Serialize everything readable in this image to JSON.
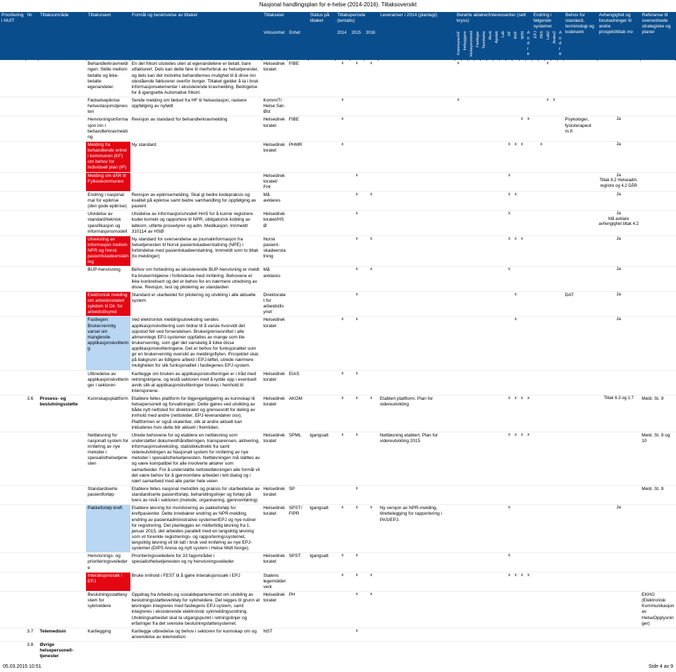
{
  "page_title": "Nasjonal handlingsplan for e-helse (2014-2016). Tiltaksoversikt",
  "footer_left": "05.03.2015 10:51",
  "footer_right": "Side 4 av 9",
  "columns": {
    "pri": "Prioritering i NUIT",
    "nr": "Nr",
    "omr": "Tiltaksområde",
    "navn": "Tiltaksnavn",
    "form": "Formål og beskrivelse av tiltaket",
    "tiltaksseier": "Tiltakseier",
    "virk": "Virksomhet",
    "enhet": "Enhet",
    "stat": "Status på tiltaket",
    "tp_head": "Tiltaksperiode (tentativ)",
    "tp_2014": "2014",
    "tp_2015": "2015",
    "tp_2016": "2016",
    "lev": "Leveranser i 2014 (planlagt)",
    "ba_head": "Berørte aktører/interessenter (sett kryss)",
    "ef_head": "Endring i følgende systemer",
    "ef_andre": "Andre",
    "andre2": "Andre",
    "beh": "Behov for standard, terminologi og kodeverk",
    "avh": "Avhengighet og forutsetninger til andre prosjekt/tiltak mv",
    "ref": "Referanse til overordnede strategiske og planer",
    "ba_cols": [
      "Kommune/HF",
      "Innbyggere",
      "Helsepersonell",
      "Fastleger",
      "Tannhelse",
      "Akutt",
      "Apotek",
      "Lab",
      "HF",
      "RHF",
      "NPR",
      "FHK",
      "Andre",
      "EPJ",
      "PAS",
      "Lab2",
      "Andre2"
    ]
  },
  "rows": [
    {
      "navn": "Behandlerkravmeldingen: Skille mellom betalte og ikke-betalte egenandeler.",
      "form": "En del frikort utstedes uten at egenandelene er betalt, bare utfakturert. Dels kan dette føre til merforbruk av helsetjenester, og dels kan det motvirke behandlernes mulighet til å drive inn utestående fakturerer overfor borger. Tiltaket gjelder å ta i bruk informasjonselementer i eksisterende kravmelding. Betingelse for å igangsette Automatisk frikort.",
      "eier": "Helsedirektoratet",
      "unit": "FIBE",
      "tp": [
        "x",
        "x",
        "x"
      ],
      "ba": [
        "x",
        "",
        "",
        "",
        "",
        "",
        "",
        "",
        "",
        "",
        "",
        "",
        "",
        "x",
        "",
        "",
        ""
      ],
      "ef": [
        "",
        "",
        "x",
        ""
      ],
      "navn_hl": "",
      "beh": "",
      "avh": "",
      "ref": ""
    },
    {
      "navn": "Fødselsepikrise helsestasjonstjenesten",
      "form": "Sende melding om fødsel fra HF til helsestasjon, raskere oppfølging av nyfødt",
      "eier": "KommIT/ Helse Sør-Øst",
      "unit": "",
      "tp": [
        "x",
        "",
        ""
      ],
      "ba": [
        "x",
        "",
        "",
        "",
        "",
        "",
        "",
        "",
        "",
        "",
        "",
        "",
        "x",
        "",
        "",
        "x",
        ""
      ],
      "ef": [
        "",
        "",
        "x",
        "x"
      ],
      "navn_hl": "",
      "beh": "",
      "avh": "",
      "ref": ""
    },
    {
      "navn": "Henvisningsinformasjon inn i behandlerkravmelding",
      "form": "Revisjon av standard for behandlerkravmelding",
      "eier": "Helsedirektoratet",
      "unit": "FIBE",
      "tp": [
        "x",
        "",
        ""
      ],
      "ba": [
        "",
        "",
        "",
        "",
        "",
        "",
        "",
        "",
        "",
        "",
        "x",
        "x",
        "",
        "",
        "",
        "",
        ""
      ],
      "ef": [
        "",
        "",
        "",
        ""
      ],
      "beh": "Psykologer, fysioterapeut m.fl",
      "avh": "x",
      "ref": "Ja",
      "navn_hl": ""
    },
    {
      "navn_hl": "red",
      "navn": "Melding fra behandlende enhet i kommunen (KF) om behov for individuell plan (IP)",
      "form": "Ny standard",
      "eier": "Helsedirektoratet",
      "unit": "PHMR",
      "tp": [
        "x",
        "",
        ""
      ],
      "ba": [
        "",
        "",
        "",
        "",
        "",
        "",
        "",
        "",
        "x",
        "x",
        "x",
        "",
        "",
        "",
        "",
        "",
        ""
      ],
      "ef": [
        "",
        "x",
        "",
        ""
      ],
      "beh": "",
      "avh": "",
      "ref": "Ja"
    },
    {
      "navn_hl": "red",
      "navn": "Melding om dÅR til Fylkeskommunen",
      "form": "",
      "eier": "Helsedirektoratet/ FHI",
      "unit": "",
      "tp": [
        "",
        "x",
        ""
      ],
      "ba": [
        "",
        "",
        "",
        "",
        "",
        "",
        "",
        "",
        "x",
        "",
        "",
        "",
        "",
        "x",
        "",
        "x",
        ""
      ],
      "ef": [
        "",
        "",
        "",
        ""
      ],
      "beh": "",
      "avh": "",
      "ref": "Ja",
      "ref2": "Tiltak 8.2 Helseadm. registre og 4.2 DÅR"
    },
    {
      "navn": "Endring i nasjonal mal for epikrise (den gode epikrise)",
      "form": "Revisjon av epikrisemelding. Skal gi bedre kodepraksis og kvalitet på epikrise samt bedre samhandling for oppfølging av pasient",
      "eier": "Må avklares",
      "unit": "",
      "tp": [
        "",
        "x",
        "x"
      ],
      "ba": [
        "",
        "",
        "",
        "",
        "",
        "",
        "",
        "",
        "x",
        "x",
        "",
        "",
        "",
        "x",
        "",
        "x",
        ""
      ],
      "ef": [
        "",
        "",
        "",
        ""
      ],
      "beh": "",
      "avh": "",
      "ref": "Ja",
      "navn_hl": ""
    },
    {
      "navn": "Utvidelse av standard/teknisk spesifikasjon og informasjonsmodell",
      "form": "Utvidelse av informasjonsmodell Hm5 for å kunne registrere koder korrekt og rapportere til NPR, obligatorisk kobling av labkom, utførte prosedyrer og adm. Medikasjon. Innmeldt 310114 av HSØ",
      "eier": "Helsedirektoratet/HSØ",
      "unit": "",
      "tp": [
        "",
        "x",
        ""
      ],
      "ba": [
        "",
        "",
        "",
        "",
        "",
        "",
        "",
        "",
        "x",
        "",
        "",
        "",
        "",
        "",
        "",
        "x",
        ""
      ],
      "ef": [
        "",
        "",
        "",
        ""
      ],
      "beh": "",
      "avh": "",
      "ref": "Ja",
      "ref2": "Må avklare avhengighet tiltak 4.2",
      "navn_hl": ""
    },
    {
      "navn_hl": "red",
      "navn": "Utveksling av informasjon mellom NPR og Norsk pasientskadeerstatning",
      "form": "Ny standard for oversendelse av journalinformasjon fra helsetjenesten til Norsk pasientskadeerstatning (NPE) i forbindelse med pasientskadeerstatning. Innmeldt som to tiltak (to meldinger)",
      "eier": "Norsk pasient-skadeerstatning",
      "unit": "",
      "tp": [
        "",
        "x",
        "x"
      ],
      "ba": [
        "",
        "",
        "",
        "",
        "",
        "",
        "",
        "",
        "x",
        "x",
        "x",
        "",
        "x",
        "",
        "",
        "x",
        ""
      ],
      "ef": [
        "",
        "",
        "",
        ""
      ],
      "beh": "",
      "avh": "",
      "ref": "Ja"
    },
    {
      "navn": "BUP-henvisning",
      "form": "Behov om forbedring av eksisterende BUP-henvisning er meldt fra brukermiljøene i forbindelse med innføring. Behovene er ikke konkretisert og det er behov for en nærmere utredning av disse. Revisjon, test og pilotering av standarden",
      "eier": "Må avklares",
      "unit": "",
      "tp": [
        "",
        "x",
        "x"
      ],
      "ba": [
        "",
        "",
        "",
        "",
        "",
        "",
        "",
        "",
        "x",
        "",
        "",
        "",
        "",
        "",
        "",
        "x",
        ""
      ],
      "ef": [
        "",
        "",
        "",
        ""
      ],
      "beh": "",
      "avh": "",
      "ref": "Ja",
      "navn_hl": ""
    },
    {
      "navn_hl": "red",
      "navn": "Elektronisk melding om arbeidsrelatert sykdom til Dir. for arbeidstilsynet",
      "form": "Standard er utarbeidet for pilotering og utvikling i alle aktuelle system",
      "eier": "Direktoratet for arbeidstilsynet",
      "unit": "",
      "tp": [
        "",
        "x",
        ""
      ],
      "ba": [
        "",
        "",
        "",
        "",
        "",
        "",
        "",
        "",
        "",
        "x",
        "",
        "",
        "",
        "",
        "",
        "",
        ""
      ],
      "ef": [
        "",
        "",
        "",
        ""
      ],
      "beh": "DAT",
      "avh": "x",
      "ref": "Ja"
    },
    {
      "navn_hl": "blue",
      "navn": "Fastlegen: Brukervennlig varsel om manglende applikasjonskvittering",
      "form": "Ved elektronisk meldingsutveksling sendes applikasjonskvittering som bidrar til å varsle hvorvidt det oppstod feil ved forsendelsen. Brukergrensesnittet i alle allmennlege EPJ-systemer oppfattes av mange som lite brukervennlig, som gjør det vanskelig å tolke disse applikasjonskvitteringene. Det er behov for funksjonalitet som gir en brukervennlig oversikt av meldingsflyten. Prosjektet skal, på bakgrunn av tidligere arbeid i EPJ-løftet, utrede nærmere muligheten for slik funksjonalitet i fastlegenes EPJ-system.",
      "eier": "Helsedirektoratet",
      "unit": "",
      "tp": [
        "x",
        "x",
        ""
      ],
      "ba": [
        "",
        "",
        "",
        "",
        "",
        "",
        "",
        "",
        "",
        "x",
        "",
        "",
        "",
        "",
        "",
        "x",
        ""
      ],
      "ef": [
        "",
        "",
        "",
        ""
      ],
      "beh": "",
      "avh": "",
      "ref": "Ja"
    },
    {
      "navn": "Utbredelse av applikasjonskvitteringer i sektoren",
      "form": "Kartlegge om bruken av applikasjonskvitteringer er i tråd med retningslinjene, og testå sektoren med å rydde opp i eventuell avvik slik at applikasjonskvitteringer brukes i henhold til intensjonene.",
      "eier": "Helsedirektoratet",
      "unit": "EIAS",
      "tp": [
        "x",
        "x",
        ""
      ],
      "ba": [
        "",
        "",
        "",
        "",
        "",
        "",
        "",
        "",
        "",
        "",
        "",
        "",
        "",
        "",
        "",
        "",
        ""
      ],
      "ef": [
        "",
        "",
        "",
        ""
      ],
      "beh": "",
      "avh": "",
      "ref": "",
      "navn_hl": ""
    },
    {
      "nr": "3.6",
      "omr": "Prosess- og beslutningsstøtte",
      "navn": "Kunnskapsplattform",
      "form": "Etablere felles plattform for tilgjengeliggjøring av kunnskap til helsepersonell og forvaltningen. Dette gjøres ved utvikling av både nytt nettsted for direktoratet og grensesnitt for deling av innhold med andre (nettsteder, EPJ-leverandører osv). Plattformen er også skalerbar, slik at andre aktuelt kan inkluderes hvis dette blir aktuelt i fremtiden.",
      "eier": "Helsedirektoratet",
      "unit": "AKOM",
      "tp": [
        "x",
        "x",
        "x"
      ],
      "lev": "Etablert plattform. Plan for videreutvikling",
      "ba": [
        "",
        "",
        "",
        "",
        "",
        "",
        "",
        "",
        "x",
        "x",
        "x",
        "x",
        "x",
        "x",
        "x",
        "x",
        "x"
      ],
      "ef": [
        "",
        "",
        "",
        ""
      ],
      "beh": "",
      "avh": "",
      "ref": "Tiltak 6.3 og 1.7",
      "ref3": "Meld. St. 9",
      "navn_hl": ""
    },
    {
      "navn": "Nettløsning for nasjonalt system for innføring av nye metoder i spesialisthelsetjenesten",
      "form": "Utrede behovene for og etablere en nettløsning som understøtter dokumenthåndteringen, transparensen, aktivering, informasjonsutveksling, statistikkuttrekk fra samt videreutviklingen av Nasjonalt system for innføring av nye metoder i spesialisthelsetjenesten. Nettløsningen må støttes av og være kompatibel for alle involverte aktører som samarbeider. For å understøtte nettstedløsningen alle formål vil det være behov for å gjennomføre arbeidet i tett dialog og i nært samarbeid med alle parter hele veien",
      "eier": "Helsedirektoratet",
      "unit": "SPML",
      "stat": "Igangsatt",
      "tp": [
        "x",
        "x",
        ""
      ],
      "lev": "Nettløsning etablert. Plan for videreutvikling 2015",
      "ba": [
        "",
        "",
        "",
        "",
        "",
        "",
        "",
        "",
        "x",
        "x",
        "x",
        "x",
        "x",
        "",
        "",
        "",
        ""
      ],
      "ef": [
        "",
        "",
        "",
        ""
      ],
      "beh": "",
      "avh": "",
      "ref": "",
      "ref3": "Meld. St. 9 og 10",
      "navn_hl": ""
    },
    {
      "navn": "Standardiserte pasientforløp",
      "form": "Etablere felles nasjonal metodikk og praksis for utarbeidelse av standardiserte pasientforløp, behandlingslinjer og forløp på tvers av nivå i sektoren (metode, organisering, gjennomføring)",
      "eier": "Helsedirektoratet",
      "unit": "SP",
      "tp": [
        "",
        "x",
        ""
      ],
      "ba": [
        "",
        "",
        "",
        "",
        "",
        "",
        "",
        "",
        "",
        "",
        "",
        "",
        "",
        "",
        "",
        "",
        ""
      ],
      "ef": [
        "",
        "",
        "",
        ""
      ],
      "beh": "",
      "avh": "",
      "ref": "",
      "ref3": "Meld. St. 9",
      "navn_hl": ""
    },
    {
      "navn_hl": "blue",
      "navn": "Pakkeforløp kreft",
      "form": "Etablere løsning for monitorering av pakkeforløp for kreftpasienter. Dette innebærer endring av NPR-melding, endring av pasientadministrative systemer/EPJ og nye rutiner for registrering. Det planlegges en midlertidig løsning fra 1. januar 2015, det arbeides parallelt med en langsiktig løsning som vil forenkle registrerings- og rapporteringssystemet, langsiktig løsning vil bli tatt i bruk ved innføring av nye EPJ-systemer (DIPS Arena og nytt system i Helse Midt Norge).",
      "eier": "Helsedirektoratet",
      "unit": "SPST/ FIPR",
      "stat": "Igangsatt",
      "tp": [
        "x",
        "x",
        "x"
      ],
      "lev": "Ny versjon av NPR-melding, tilrettelegging for rapportering i PAS/EPJ.",
      "ba": [
        "",
        "",
        "",
        "",
        "",
        "",
        "",
        "",
        "x",
        "",
        "",
        "",
        "",
        "x",
        "x",
        "",
        ""
      ],
      "ef": [
        "",
        "",
        "",
        ""
      ],
      "beh": "",
      "avh": "",
      "ref": "Ja"
    },
    {
      "navn": "Henvisnings- og prioriteringsveiledere",
      "form": "Prioriteringsveiledere for 33 fagområder i spesialisthelsetjenesten og ny henvisningsveileder",
      "eier": "Helsedirektoratet",
      "unit": "SPST",
      "stat": "Igangsatt",
      "tp": [
        "x",
        "x",
        ""
      ],
      "ba": [
        "",
        "",
        "",
        "",
        "",
        "",
        "",
        "",
        "x",
        "",
        "",
        "",
        "",
        "",
        "",
        "",
        ""
      ],
      "ef": [
        "",
        "",
        "",
        ""
      ],
      "beh": "",
      "avh": "",
      "ref": "",
      "navn_hl": ""
    },
    {
      "navn_hl": "red",
      "navn": "Interaksjonssøk i EPJ",
      "form": "Bruke innhold i FEST til å gjøre Interaksjonssøk i EPJ",
      "eier": "Statens legemiddelverk",
      "unit": "",
      "tp": [
        "x",
        "x",
        "x"
      ],
      "ba": [
        "",
        "",
        "",
        "",
        "",
        "",
        "",
        "",
        "x",
        "x",
        "x",
        "x",
        "x",
        "",
        "",
        "x",
        ""
      ],
      "ef": [
        "",
        "",
        "",
        ""
      ],
      "beh": "",
      "avh": "x",
      "ref": ""
    },
    {
      "navn": "Beslutningsstøttesystem for sykmeldere",
      "form": "Oppdrag fra Arbeids-og sosialdepartementet om utvikling av beslutningsstøtteverktøy for sykmeldere. Det legges til grunn at løsningen integreres med fastlegens EPJ-system, samt integreres i eksisterende elektronisk sykmeldingsordning. Utviklingsarbeidet skal ta utgangspunkt i retningslinjer og erfaringer fra det svenske beslutningstøttesystemet.",
      "eier": "Helsedirektoratet",
      "unit": "PH",
      "tp": [
        "",
        "x",
        "x"
      ],
      "ba": [
        "",
        "",
        "",
        "",
        "",
        "",
        "",
        "",
        "",
        "",
        "",
        "",
        "",
        "",
        "",
        "x",
        ""
      ],
      "ef": [
        "",
        "",
        "",
        ""
      ],
      "beh": "",
      "avh": "",
      "ref": "",
      "ref3": "EKHO (Elektronisk Kommunikasjon av HelseOpplysninger)",
      "navn_hl": ""
    },
    {
      "nr": "3.7",
      "omr": "Telemedisin",
      "navn": "Kartlegging",
      "form": "Kartlegge utbredelse og behov i sektoren for kunnskap om og anvendelse av telemedisin.",
      "eier": "NST",
      "unit": "",
      "tp": [
        "",
        "x",
        ""
      ],
      "ba": [
        "",
        "",
        "",
        "",
        "",
        "",
        "",
        "",
        "",
        "",
        "",
        "",
        "",
        "",
        "",
        "",
        ""
      ],
      "ef": [
        "",
        "",
        "",
        ""
      ],
      "beh": "",
      "avh": "",
      "ref": "",
      "navn_hl": ""
    },
    {
      "nr": "3.8",
      "omr": "Øvrige helsepersonell-tjenester",
      "navn": "",
      "form": "",
      "eier": "",
      "unit": "",
      "tp": [
        "",
        "",
        ""
      ],
      "ba": [
        "",
        "",
        "",
        "",
        "",
        "",
        "",
        "",
        "",
        "",
        "",
        "",
        "",
        "",
        "",
        "",
        ""
      ],
      "ef": [
        "",
        "",
        "",
        ""
      ],
      "beh": "",
      "avh": "",
      "ref": "",
      "navn_hl": ""
    }
  ]
}
